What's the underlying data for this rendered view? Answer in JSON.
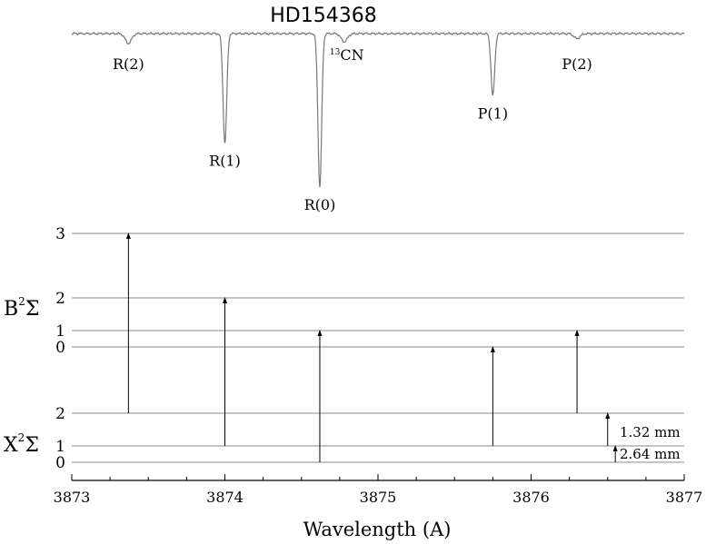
{
  "chart_data": [
    {
      "type": "line",
      "title": "HD154368",
      "xlim": [
        3873,
        3877
      ],
      "absorption_lines": [
        {
          "label": "R(2)",
          "x": 3873.37,
          "relative_depth": 0.06
        },
        {
          "label": "R(1)",
          "x": 3874.0,
          "relative_depth": 0.67
        },
        {
          "label": "R(0)",
          "x": 3874.62,
          "relative_depth": 0.94
        },
        {
          "label": "13CN",
          "label_sup": "13",
          "label_main": "CN",
          "x": 3874.78,
          "relative_depth": 0.05
        },
        {
          "label": "P(1)",
          "x": 3875.75,
          "relative_depth": 0.38
        },
        {
          "label": "P(2)",
          "x": 3876.3,
          "relative_depth": 0.03
        }
      ]
    },
    {
      "type": "diagram",
      "xlabel": "Wavelength (A)",
      "xlim": [
        3873,
        3877
      ],
      "xticks": [
        "3873",
        "3874",
        "3875",
        "3876",
        "3877"
      ],
      "upper_state": {
        "label_main": "B",
        "label_sup": "2",
        "label_sym": "Σ",
        "levels": [
          "0",
          "1",
          "2",
          "3"
        ]
      },
      "lower_state": {
        "label_main": "X",
        "label_sup": "2",
        "label_sym": "Σ",
        "levels": [
          "0",
          "1",
          "2"
        ]
      },
      "transitions": [
        {
          "line": "R(2)",
          "x": 3873.37,
          "from": 2,
          "to": 3
        },
        {
          "line": "R(1)",
          "x": 3874.0,
          "from": 1,
          "to": 2
        },
        {
          "line": "R(0)",
          "x": 3874.62,
          "from": 0,
          "to": 1
        },
        {
          "line": "P(1)",
          "x": 3875.75,
          "from": 1,
          "to": 0
        },
        {
          "line": "P(2)",
          "x": 3876.3,
          "from": 2,
          "to": 1
        }
      ],
      "annotations": [
        {
          "text": "1.32 mm",
          "x": 3876.5,
          "from": 1,
          "to": 2
        },
        {
          "text": "2.64 mm",
          "x": 3876.55,
          "from": 0,
          "to": 1
        }
      ]
    }
  ]
}
